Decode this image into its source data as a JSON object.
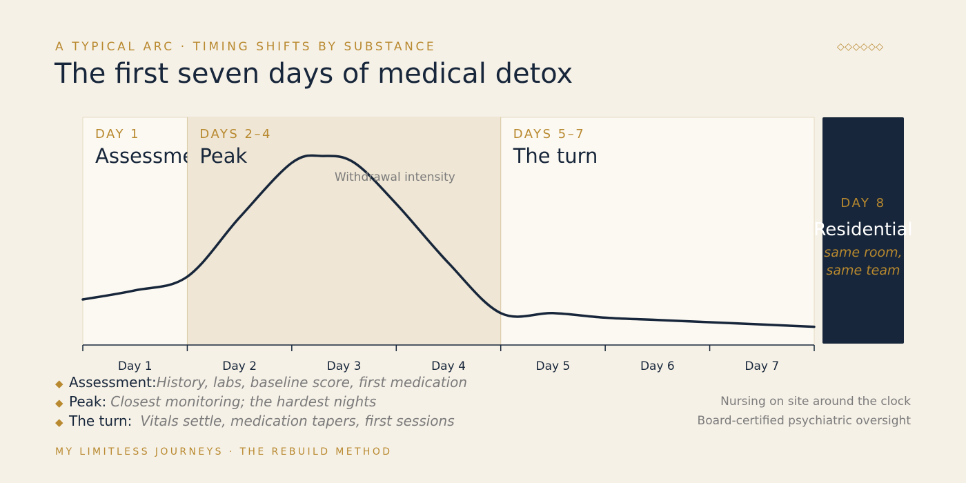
{
  "header": {
    "eyebrow": "A TYPICAL ARC · TIMING SHIFTS BY SUBSTANCE",
    "title": "The first seven days of medical detox",
    "ornament": "◇◇◇◇◇◇"
  },
  "chart_data": {
    "type": "line",
    "title": "The first seven days of medical detox",
    "series_label": "Withdrawal intensity",
    "ylabel": "",
    "x_axis": [
      "Day 1",
      "Day 2",
      "Day 3",
      "Day 4",
      "Day 5",
      "Day 6",
      "Day 7"
    ],
    "xlim": [
      1,
      8
    ],
    "ylim": [
      0,
      100
    ],
    "series": [
      {
        "name": "Withdrawal intensity",
        "x": [
          1.0,
          1.5,
          2.0,
          2.5,
          3.0,
          3.3,
          3.6,
          4.0,
          4.5,
          5.0,
          5.5,
          6.0,
          6.5,
          7.0,
          7.5,
          8.0
        ],
        "y": [
          20,
          24,
          30,
          56,
          80,
          83,
          80,
          62,
          36,
          14,
          14,
          12,
          11,
          10,
          9,
          8
        ]
      }
    ],
    "phases": [
      {
        "days": "DAY 1",
        "name": "Assessment",
        "start": 1,
        "end": 2,
        "shaded": false
      },
      {
        "days": "DAYS 2–4",
        "name": "Peak",
        "start": 2,
        "end": 5,
        "shaded": true
      },
      {
        "days": "DAYS 5–7",
        "name": "The turn",
        "start": 5,
        "end": 8,
        "shaded": false
      }
    ],
    "next_phase": {
      "days": "DAY 8",
      "name": "Residential",
      "note_line1": "same room,",
      "note_line2": "same team"
    },
    "colors": {
      "line": "#17263a",
      "accent": "#b8892f",
      "panel": "#fcf9f2",
      "shade": "#efe6d5",
      "dark": "#17263a"
    }
  },
  "legend": [
    {
      "name": "Assessment:",
      "desc": "History, labs, baseline score, first medication"
    },
    {
      "name": "Peak:",
      "desc": "Closest monitoring; the hardest nights"
    },
    {
      "name": "The turn:",
      "desc": "Vitals settle, medication tapers, first sessions"
    }
  ],
  "notes": [
    "Nursing on site around the clock",
    "Board-certified psychiatric oversight"
  ],
  "footer": "MY LIMITLESS JOURNEYS · THE REBUILD METHOD"
}
